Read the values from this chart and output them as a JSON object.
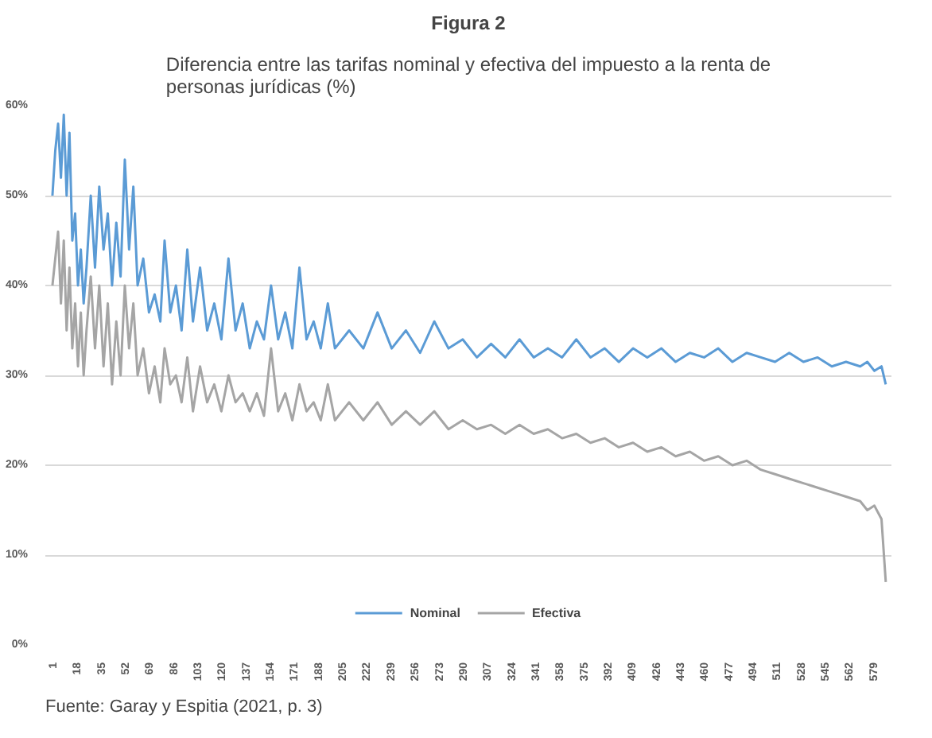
{
  "chart_data": {
    "type": "line",
    "title": "Figura 2",
    "subtitle": "Diferencia entre las tarifas nominal y efectiva del impuesto a la renta de personas jurídicas (%)",
    "x": [
      1,
      3,
      5,
      7,
      9,
      11,
      13,
      15,
      17,
      19,
      21,
      23,
      25,
      28,
      31,
      34,
      37,
      40,
      43,
      46,
      49,
      52,
      55,
      58,
      61,
      65,
      69,
      73,
      77,
      80,
      84,
      88,
      92,
      96,
      100,
      105,
      110,
      115,
      120,
      125,
      130,
      135,
      140,
      145,
      150,
      155,
      160,
      165,
      170,
      175,
      180,
      185,
      190,
      195,
      200,
      210,
      220,
      230,
      240,
      250,
      260,
      270,
      280,
      290,
      300,
      310,
      320,
      330,
      340,
      350,
      360,
      370,
      380,
      390,
      400,
      410,
      420,
      430,
      440,
      450,
      460,
      470,
      480,
      490,
      500,
      510,
      520,
      530,
      540,
      550,
      560,
      570,
      575,
      580,
      585,
      588
    ],
    "series": [
      {
        "name": "Nominal",
        "color": "#5b9bd5",
        "values": [
          50,
          55,
          58,
          52,
          59,
          50,
          57,
          45,
          48,
          40,
          44,
          38,
          42,
          50,
          42,
          51,
          44,
          48,
          40,
          47,
          41,
          54,
          44,
          51,
          40,
          43,
          37,
          39,
          36,
          45,
          37,
          40,
          35,
          44,
          36,
          42,
          35,
          38,
          34,
          43,
          35,
          38,
          33,
          36,
          34,
          40,
          34,
          37,
          33,
          42,
          34,
          36,
          33,
          38,
          33,
          35,
          33,
          37,
          33,
          35,
          32.5,
          36,
          33,
          34,
          32,
          33.5,
          32,
          34,
          32,
          33,
          32,
          34,
          32,
          33,
          31.5,
          33,
          32,
          33,
          31.5,
          32.5,
          32,
          33,
          31.5,
          32.5,
          32,
          31.5,
          32.5,
          31.5,
          32,
          31,
          31.5,
          31,
          31.5,
          30.5,
          31,
          29
        ]
      },
      {
        "name": "Efectiva",
        "color": "#a5a5a5",
        "values": [
          40,
          43,
          46,
          38,
          45,
          35,
          42,
          33,
          38,
          31,
          37,
          30,
          35,
          41,
          33,
          40,
          31,
          38,
          29,
          36,
          30,
          40,
          33,
          38,
          30,
          33,
          28,
          31,
          27,
          33,
          29,
          30,
          27,
          32,
          26,
          31,
          27,
          29,
          26,
          30,
          27,
          28,
          26,
          28,
          25.5,
          33,
          26,
          28,
          25,
          29,
          26,
          27,
          25,
          29,
          25,
          27,
          25,
          27,
          24.5,
          26,
          24.5,
          26,
          24,
          25,
          24,
          24.5,
          23.5,
          24.5,
          23.5,
          24,
          23,
          23.5,
          22.5,
          23,
          22,
          22.5,
          21.5,
          22,
          21,
          21.5,
          20.5,
          21,
          20,
          20.5,
          19.5,
          19,
          18.5,
          18,
          17.5,
          17,
          16.5,
          16,
          15,
          15.5,
          14,
          7
        ]
      }
    ],
    "xlim": [
      -4,
      592
    ],
    "xticks": [
      1,
      18,
      35,
      52,
      69,
      86,
      103,
      120,
      137,
      154,
      171,
      188,
      205,
      222,
      239,
      256,
      273,
      290,
      307,
      324,
      341,
      358,
      375,
      392,
      409,
      426,
      443,
      460,
      477,
      494,
      511,
      528,
      545,
      562,
      579
    ],
    "ylim": [
      0,
      60
    ],
    "yticks": [
      {
        "value": 0,
        "label": "0%"
      },
      {
        "value": 10,
        "label": "10%"
      },
      {
        "value": 20,
        "label": "20%"
      },
      {
        "value": 30,
        "label": "30%"
      },
      {
        "value": 40,
        "label": "40%"
      },
      {
        "value": 50,
        "label": "50%"
      },
      {
        "value": 60,
        "label": "60%"
      }
    ],
    "grid": "y",
    "legend": "bottom",
    "line_style": "solid",
    "marker": "none",
    "annotations": [
      "Fuente: Garay y Espitia (2021, p. 3)"
    ]
  }
}
